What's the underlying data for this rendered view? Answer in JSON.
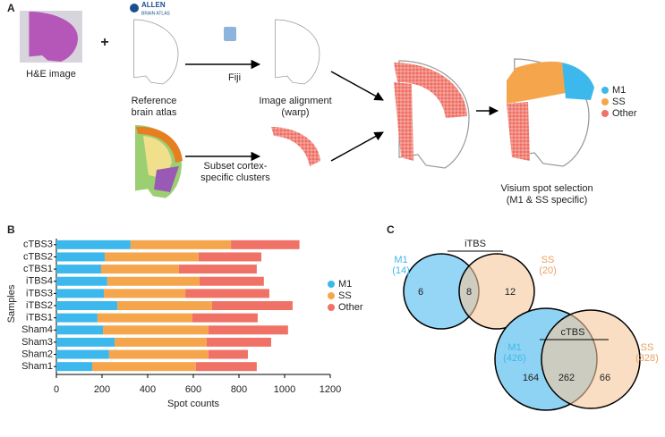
{
  "panel_a": {
    "label": "A",
    "plus": "+",
    "allen": [
      "ALLEN",
      "BRAIN ATLAS"
    ],
    "he_label": "H&E image",
    "reference_label": [
      "Reference",
      "brain atlas"
    ],
    "fiji_label": "Fiji",
    "alignment_label": [
      "Image alignment",
      "(warp)"
    ],
    "subset_label": [
      "Subset cortex-",
      "specific clusters"
    ],
    "selection_label": [
      "Visium spot selection",
      "(M1 & SS specific)"
    ],
    "legend": [
      "M1",
      "SS",
      "Other"
    ]
  },
  "chart_data": {
    "type": "bar",
    "label": "B",
    "orientation": "horizontal",
    "stacked": true,
    "categories": [
      "cTBS3",
      "cTBS2",
      "cTBS1",
      "iTBS4",
      "iTBS3",
      "iTBS2",
      "iTBS1",
      "Sham4",
      "Sham3",
      "Sham2",
      "Sham1"
    ],
    "series": [
      {
        "name": "M1",
        "color": "#3db8ec",
        "values": [
          325,
          212,
          196,
          223,
          208,
          267,
          180,
          204,
          255,
          231,
          157
        ]
      },
      {
        "name": "SS",
        "color": "#f5a64c",
        "values": [
          440,
          411,
          341,
          404,
          357,
          415,
          416,
          462,
          403,
          435,
          454
        ]
      },
      {
        "name": "Other",
        "color": "#f07266",
        "values": [
          300,
          275,
          341,
          282,
          368,
          353,
          286,
          349,
          283,
          173,
          267
        ]
      }
    ],
    "xlabel": "Spot counts",
    "ylabel": "Samples",
    "xlim": [
      0,
      1200
    ],
    "xticks": [
      0,
      200,
      400,
      600,
      800,
      1000,
      1200
    ],
    "legend": "right"
  },
  "panel_c": {
    "label": "C",
    "venns": [
      {
        "title": "iTBS",
        "left": [
          "M1",
          "(14)"
        ],
        "right": [
          "SS",
          "(20)"
        ],
        "counts": [
          "6",
          "8",
          "12"
        ]
      },
      {
        "title": "cTBS",
        "left": [
          "M1",
          "(426)"
        ],
        "right": [
          "SS",
          "(328)"
        ],
        "counts": [
          "164",
          "262",
          "66"
        ]
      }
    ]
  }
}
